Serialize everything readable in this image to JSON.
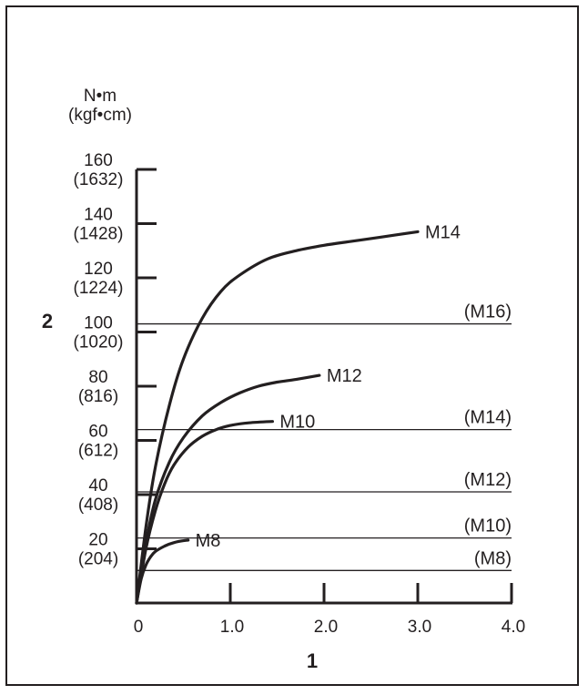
{
  "chart_data": {
    "type": "line",
    "title": "",
    "xlabel": "1",
    "ylabel": "2",
    "unit_primary": "N•m",
    "unit_secondary": "(kgf•cm)",
    "xlim": [
      0,
      4.0
    ],
    "ylim": [
      0,
      160
    ],
    "grid": false,
    "x_ticks": [
      {
        "value": 0,
        "label": "0"
      },
      {
        "value": 1.0,
        "label": "1.0"
      },
      {
        "value": 2.0,
        "label": "2.0"
      },
      {
        "value": 3.0,
        "label": "3.0"
      },
      {
        "value": 4.0,
        "label": "4.0"
      }
    ],
    "y_ticks": [
      {
        "value": 20,
        "label": "20",
        "sublabel": "(204)"
      },
      {
        "value": 40,
        "label": "40",
        "sublabel": "(408)"
      },
      {
        "value": 60,
        "label": "60",
        "sublabel": "(612)"
      },
      {
        "value": 80,
        "label": "80",
        "sublabel": "(816)"
      },
      {
        "value": 100,
        "label": "100",
        "sublabel": "(1020)"
      },
      {
        "value": 120,
        "label": "120",
        "sublabel": "(1224)"
      },
      {
        "value": 140,
        "label": "140",
        "sublabel": "(1428)"
      },
      {
        "value": 160,
        "label": "160",
        "sublabel": "(1632)"
      }
    ],
    "reference_lines": [
      {
        "name": "(M16)",
        "y": 103
      },
      {
        "name": "(M14)",
        "y": 64
      },
      {
        "name": "(M12)",
        "y": 41
      },
      {
        "name": "(M10)",
        "y": 24
      },
      {
        "name": "(M8)",
        "y": 12
      }
    ],
    "series": [
      {
        "name": "M14",
        "x": [
          0,
          0.1,
          0.2,
          0.35,
          0.5,
          0.7,
          0.9,
          1.1,
          1.4,
          1.7,
          2.0,
          2.3,
          2.6,
          3.0
        ],
        "y": [
          0,
          28,
          50,
          73,
          90,
          105,
          115,
          121,
          127,
          130,
          132,
          133.5,
          135,
          137
        ]
      },
      {
        "name": "M12",
        "x": [
          0,
          0.1,
          0.2,
          0.35,
          0.5,
          0.7,
          0.9,
          1.1,
          1.3,
          1.5,
          1.7,
          1.95
        ],
        "y": [
          0,
          22,
          38,
          52,
          61,
          69,
          74,
          77.5,
          80,
          81.5,
          82.5,
          84
        ]
      },
      {
        "name": "M10",
        "x": [
          0,
          0.1,
          0.2,
          0.3,
          0.4,
          0.55,
          0.7,
          0.85,
          1.0,
          1.2,
          1.45
        ],
        "y": [
          0,
          20,
          34,
          44,
          51,
          57.5,
          61.5,
          64,
          65.5,
          66.5,
          67
        ]
      },
      {
        "name": "M8",
        "x": [
          0,
          0.05,
          0.1,
          0.15,
          0.2,
          0.3,
          0.4,
          0.5,
          0.55
        ],
        "y": [
          0,
          9,
          14,
          17,
          19,
          21,
          22.3,
          23,
          23.2
        ]
      }
    ]
  }
}
